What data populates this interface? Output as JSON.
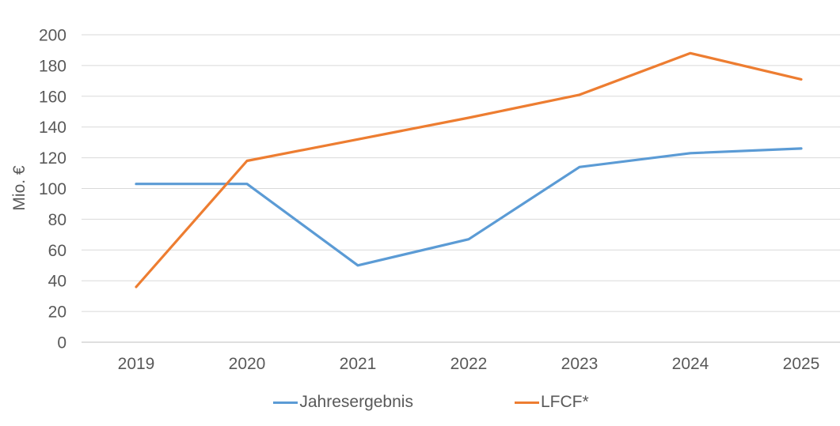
{
  "chart_data": {
    "type": "line",
    "categories": [
      "2019",
      "2020",
      "2021",
      "2022",
      "2023",
      "2024",
      "2025"
    ],
    "series": [
      {
        "name": "Jahresergebnis",
        "color": "#5B9BD5",
        "values": [
          103,
          103,
          50,
          67,
          114,
          123,
          126
        ]
      },
      {
        "name": "LFCF*",
        "color": "#ED7D31",
        "values": [
          36,
          118,
          132,
          146,
          161,
          188,
          171
        ]
      }
    ],
    "title": "",
    "xlabel": "",
    "ylabel": "Mio. €",
    "ylim": [
      0,
      200
    ],
    "ytick_step": 20,
    "grid": "horizontal-only",
    "legend_position": "bottom",
    "text_color": "#595959",
    "gridline_color": "#D9D9D9",
    "axisline_color": "#BFBFBF",
    "background_color": "#FFFFFF"
  }
}
